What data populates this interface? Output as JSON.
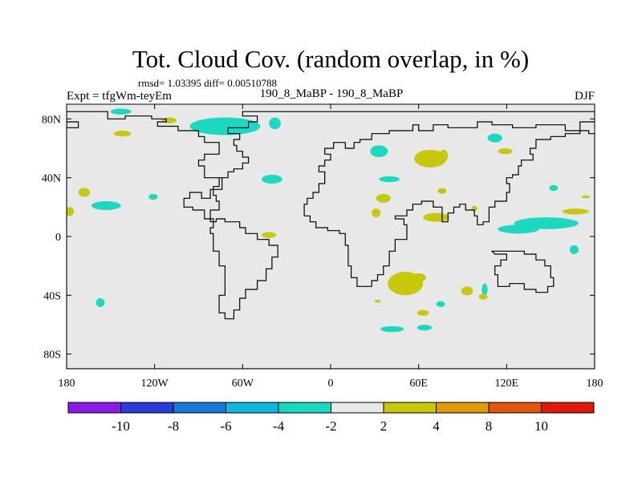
{
  "chart_data": {
    "type": "heatmap",
    "title": "Tot. Cloud Cov. (random overlap, in %)",
    "stats": "rmsd= 1.03395 diff= 0.00510788",
    "left_label": "Expt = tfgWm-teyEm",
    "center_label": "190_8_MaBP - 190_8_MaBP",
    "right_label": "DJF",
    "x_ticks": [
      "180",
      "120W",
      "60W",
      "0",
      "60E",
      "120E",
      "180"
    ],
    "x_values": [
      -180,
      -120,
      -60,
      0,
      60,
      120,
      180
    ],
    "y_ticks": [
      "80N",
      "40N",
      "0",
      "40S",
      "80S"
    ],
    "y_values": [
      80,
      40,
      0,
      -40,
      -80
    ],
    "xlim": [
      -180,
      180
    ],
    "ylim": [
      -90,
      90
    ],
    "colorbar": {
      "labels": [
        "-10",
        "-8",
        "-6",
        "-4",
        "-2",
        "2",
        "4",
        "8",
        "10"
      ],
      "colors": [
        "#8b1ae6",
        "#2b3bd9",
        "#1a78d9",
        "#12b4e0",
        "#1ad9c0",
        "#e8e8e8",
        "#c8c80a",
        "#e09a0a",
        "#e0560a",
        "#e01a0a"
      ]
    },
    "background_color": "#e8e8e8",
    "positive_color": "#c8c80a",
    "negative_color": "#1ad9c0",
    "anomalies": [
      {
        "sign": "neg",
        "lon": -143,
        "lat": 85,
        "dlon": 7,
        "dlat": 2
      },
      {
        "sign": "neg",
        "lon": -72,
        "lat": 75,
        "dlon": 24,
        "dlat": 6
      },
      {
        "sign": "neg",
        "lon": -38,
        "lat": 77,
        "dlon": 4,
        "dlat": 4
      },
      {
        "sign": "neg",
        "lon": 33,
        "lat": 58,
        "dlon": 6,
        "dlat": 4
      },
      {
        "sign": "neg",
        "lon": -153,
        "lat": 21,
        "dlon": 10,
        "dlat": 3
      },
      {
        "sign": "neg",
        "lon": -121,
        "lat": 27,
        "dlon": 3,
        "dlat": 2
      },
      {
        "sign": "neg",
        "lon": -40,
        "lat": 39,
        "dlon": 7,
        "dlat": 3
      },
      {
        "sign": "neg",
        "lon": 40,
        "lat": 39,
        "dlon": 7,
        "dlat": 2
      },
      {
        "sign": "neg",
        "lon": 112,
        "lat": 67,
        "dlon": 5,
        "dlat": 3
      },
      {
        "sign": "neg",
        "lon": 152,
        "lat": 33,
        "dlon": 3,
        "dlat": 2
      },
      {
        "sign": "neg",
        "lon": 147,
        "lat": 9,
        "dlon": 22,
        "dlat": 4
      },
      {
        "sign": "neg",
        "lon": 128,
        "lat": 5,
        "dlon": 14,
        "dlat": 3
      },
      {
        "sign": "neg",
        "lon": 166,
        "lat": -9,
        "dlon": 3,
        "dlat": 3
      },
      {
        "sign": "neg",
        "lon": -157,
        "lat": -45,
        "dlon": 3,
        "dlat": 3
      },
      {
        "sign": "neg",
        "lon": 75,
        "lat": -46,
        "dlon": 3,
        "dlat": 2
      },
      {
        "sign": "neg",
        "lon": 105,
        "lat": -36,
        "dlon": 2,
        "dlat": 4
      },
      {
        "sign": "neg",
        "lon": 42,
        "lat": -63,
        "dlon": 8,
        "dlat": 2
      },
      {
        "sign": "neg",
        "lon": 64,
        "lat": -62,
        "dlon": 5,
        "dlat": 2
      },
      {
        "sign": "pos",
        "lon": -142,
        "lat": 70,
        "dlon": 6,
        "dlat": 2
      },
      {
        "sign": "pos",
        "lon": -110,
        "lat": 79,
        "dlon": 5,
        "dlat": 2
      },
      {
        "sign": "pos",
        "lon": -168,
        "lat": 30,
        "dlon": 4,
        "dlat": 3
      },
      {
        "sign": "pos",
        "lon": -178,
        "lat": 17,
        "dlon": 3,
        "dlat": 3
      },
      {
        "sign": "pos",
        "lon": -42,
        "lat": 1,
        "dlon": 5,
        "dlat": 2
      },
      {
        "sign": "pos",
        "lon": 68,
        "lat": 53,
        "dlon": 11,
        "dlat": 6
      },
      {
        "sign": "pos",
        "lon": 77,
        "lat": 55,
        "dlon": 3,
        "dlat": 4
      },
      {
        "sign": "pos",
        "lon": 119,
        "lat": 58,
        "dlon": 5,
        "dlat": 2
      },
      {
        "sign": "pos",
        "lon": 76,
        "lat": 31,
        "dlon": 3,
        "dlat": 2
      },
      {
        "sign": "pos",
        "lon": 36,
        "lat": 26,
        "dlon": 5,
        "dlat": 3
      },
      {
        "sign": "pos",
        "lon": 31,
        "lat": 16,
        "dlon": 3,
        "dlat": 3
      },
      {
        "sign": "pos",
        "lon": 72,
        "lat": 13,
        "dlon": 9,
        "dlat": 3
      },
      {
        "sign": "pos",
        "lon": 98,
        "lat": 19,
        "dlon": 2,
        "dlat": 2
      },
      {
        "sign": "pos",
        "lon": 167,
        "lat": 17,
        "dlon": 9,
        "dlat": 2
      },
      {
        "sign": "pos",
        "lon": 174,
        "lat": 27,
        "dlon": 3,
        "dlat": 1
      },
      {
        "sign": "pos",
        "lon": 51,
        "lat": -32,
        "dlon": 12,
        "dlat": 8
      },
      {
        "sign": "pos",
        "lon": 60,
        "lat": -28,
        "dlon": 5,
        "dlat": 3
      },
      {
        "sign": "pos",
        "lon": 93,
        "lat": -37,
        "dlon": 4,
        "dlat": 3
      },
      {
        "sign": "pos",
        "lon": 104,
        "lat": -41,
        "dlon": 3,
        "dlat": 2
      },
      {
        "sign": "pos",
        "lon": 63,
        "lat": -52,
        "dlon": 4,
        "dlat": 2
      },
      {
        "sign": "pos",
        "lon": 32,
        "lat": -44,
        "dlon": 2,
        "dlat": 1
      }
    ],
    "continents": [
      [
        [
          -180,
          85
        ],
        [
          -152,
          85
        ],
        [
          -152,
          80
        ],
        [
          -140,
          80
        ],
        [
          -140,
          82
        ],
        [
          -122,
          82
        ],
        [
          -122,
          80
        ],
        [
          -112,
          80
        ],
        [
          -112,
          78
        ],
        [
          -118,
          78
        ],
        [
          -118,
          75
        ],
        [
          -104,
          75
        ],
        [
          -104,
          72
        ],
        [
          -90,
          72
        ],
        [
          -90,
          68
        ],
        [
          -86,
          68
        ],
        [
          -86,
          64
        ],
        [
          -76,
          64
        ],
        [
          -76,
          56
        ],
        [
          -86,
          56
        ],
        [
          -86,
          52
        ],
        [
          -90,
          52
        ],
        [
          -90,
          48
        ],
        [
          -86,
          48
        ],
        [
          -86,
          40
        ],
        [
          -74,
          40
        ],
        [
          -74,
          32
        ],
        [
          -82,
          32
        ],
        [
          -82,
          26
        ],
        [
          -88,
          26
        ],
        [
          -88,
          30
        ],
        [
          -96,
          30
        ],
        [
          -96,
          26
        ],
        [
          -100,
          26
        ],
        [
          -100,
          20
        ],
        [
          -94,
          20
        ],
        [
          -94,
          18
        ],
        [
          -86,
          18
        ],
        [
          -86,
          12
        ],
        [
          -80,
          12
        ],
        [
          -80,
          6
        ],
        [
          -82,
          6
        ],
        [
          -82,
          2
        ],
        [
          -80,
          2
        ],
        [
          -80,
          -10
        ],
        [
          -76,
          -10
        ],
        [
          -76,
          -20
        ],
        [
          -72,
          -20
        ],
        [
          -72,
          -40
        ],
        [
          -76,
          -40
        ],
        [
          -76,
          -52
        ],
        [
          -72,
          -52
        ],
        [
          -72,
          -56
        ],
        [
          -66,
          -56
        ],
        [
          -66,
          -50
        ],
        [
          -62,
          -50
        ],
        [
          -62,
          -42
        ],
        [
          -58,
          -42
        ],
        [
          -58,
          -36
        ],
        [
          -50,
          -36
        ],
        [
          -50,
          -30
        ],
        [
          -44,
          -30
        ],
        [
          -44,
          -22
        ],
        [
          -40,
          -22
        ],
        [
          -40,
          -14
        ],
        [
          -36,
          -14
        ],
        [
          -36,
          -6
        ],
        [
          -42,
          -6
        ],
        [
          -42,
          -2
        ],
        [
          -50,
          -2
        ],
        [
          -50,
          2
        ],
        [
          -58,
          2
        ],
        [
          -58,
          6
        ],
        [
          -62,
          6
        ],
        [
          -62,
          10
        ],
        [
          -72,
          10
        ],
        [
          -72,
          12
        ],
        [
          -78,
          12
        ],
        [
          -78,
          10
        ],
        [
          -82,
          10
        ],
        [
          -82,
          18
        ],
        [
          -76,
          18
        ],
        [
          -76,
          24
        ],
        [
          -78,
          24
        ],
        [
          -78,
          28
        ],
        [
          -80,
          28
        ],
        [
          -80,
          34
        ],
        [
          -76,
          34
        ],
        [
          -76,
          40
        ],
        [
          -70,
          40
        ],
        [
          -70,
          44
        ],
        [
          -66,
          44
        ],
        [
          -66,
          46
        ],
        [
          -60,
          46
        ],
        [
          -60,
          50
        ],
        [
          -56,
          50
        ],
        [
          -56,
          54
        ],
        [
          -60,
          54
        ],
        [
          -60,
          58
        ],
        [
          -64,
          58
        ],
        [
          -64,
          62
        ],
        [
          -66,
          62
        ],
        [
          -66,
          66
        ],
        [
          -62,
          66
        ],
        [
          -62,
          70
        ],
        [
          -70,
          70
        ],
        [
          -70,
          74
        ],
        [
          -56,
          74
        ],
        [
          -56,
          78
        ],
        [
          -50,
          78
        ],
        [
          -50,
          82
        ],
        [
          -60,
          82
        ],
        [
          -60,
          85
        ],
        [
          180,
          85
        ],
        [
          180,
          78
        ],
        [
          170,
          78
        ],
        [
          170,
          70
        ],
        [
          160,
          70
        ],
        [
          160,
          68
        ],
        [
          150,
          68
        ],
        [
          150,
          66
        ],
        [
          140,
          66
        ],
        [
          140,
          60
        ],
        [
          136,
          60
        ],
        [
          136,
          56
        ],
        [
          138,
          56
        ],
        [
          138,
          52
        ],
        [
          130,
          52
        ],
        [
          130,
          48
        ],
        [
          128,
          48
        ],
        [
          128,
          42
        ],
        [
          124,
          42
        ],
        [
          124,
          40
        ],
        [
          120,
          40
        ],
        [
          120,
          36
        ],
        [
          122,
          36
        ],
        [
          122,
          30
        ],
        [
          120,
          30
        ],
        [
          120,
          24
        ],
        [
          112,
          24
        ],
        [
          112,
          20
        ],
        [
          108,
          20
        ],
        [
          108,
          10
        ],
        [
          104,
          10
        ],
        [
          104,
          8
        ],
        [
          100,
          8
        ],
        [
          100,
          14
        ],
        [
          98,
          14
        ],
        [
          98,
          18
        ],
        [
          92,
          18
        ],
        [
          92,
          22
        ],
        [
          88,
          22
        ],
        [
          88,
          20
        ],
        [
          84,
          20
        ],
        [
          84,
          16
        ],
        [
          80,
          16
        ],
        [
          80,
          10
        ],
        [
          76,
          10
        ],
        [
          76,
          20
        ],
        [
          70,
          20
        ],
        [
          70,
          24
        ],
        [
          62,
          24
        ],
        [
          62,
          22
        ],
        [
          56,
          22
        ],
        [
          56,
          18
        ],
        [
          52,
          18
        ],
        [
          52,
          14
        ],
        [
          44,
          14
        ],
        [
          44,
          12
        ],
        [
          50,
          12
        ],
        [
          50,
          8
        ],
        [
          52,
          8
        ],
        [
          52,
          -2
        ],
        [
          44,
          -2
        ],
        [
          44,
          -10
        ],
        [
          40,
          -10
        ],
        [
          40,
          -20
        ],
        [
          36,
          -20
        ],
        [
          36,
          -26
        ],
        [
          32,
          -26
        ],
        [
          32,
          -30
        ],
        [
          28,
          -30
        ],
        [
          28,
          -34
        ],
        [
          18,
          -34
        ],
        [
          18,
          -28
        ],
        [
          14,
          -28
        ],
        [
          14,
          -20
        ],
        [
          12,
          -20
        ],
        [
          12,
          -6
        ],
        [
          10,
          -6
        ],
        [
          10,
          2
        ],
        [
          6,
          2
        ],
        [
          6,
          4
        ],
        [
          -2,
          4
        ],
        [
          -2,
          6
        ],
        [
          -10,
          6
        ],
        [
          -10,
          10
        ],
        [
          -14,
          10
        ],
        [
          -14,
          14
        ],
        [
          -18,
          14
        ],
        [
          -18,
          22
        ],
        [
          -16,
          22
        ],
        [
          -16,
          26
        ],
        [
          -12,
          26
        ],
        [
          -12,
          30
        ],
        [
          -8,
          30
        ],
        [
          -8,
          36
        ],
        [
          -4,
          36
        ],
        [
          -4,
          44
        ],
        [
          -8,
          44
        ],
        [
          -8,
          48
        ],
        [
          -4,
          48
        ],
        [
          -4,
          52
        ],
        [
          0,
          52
        ],
        [
          0,
          56
        ],
        [
          -4,
          56
        ],
        [
          -4,
          60
        ],
        [
          2,
          60
        ],
        [
          2,
          64
        ],
        [
          10,
          64
        ],
        [
          10,
          60
        ],
        [
          16,
          60
        ],
        [
          16,
          64
        ],
        [
          20,
          64
        ],
        [
          20,
          66
        ],
        [
          28,
          66
        ],
        [
          28,
          70
        ],
        [
          40,
          70
        ],
        [
          40,
          72
        ],
        [
          56,
          72
        ],
        [
          56,
          76
        ],
        [
          60,
          76
        ],
        [
          60,
          72
        ],
        [
          70,
          72
        ],
        [
          70,
          76
        ],
        [
          80,
          76
        ],
        [
          80,
          74
        ],
        [
          100,
          74
        ],
        [
          100,
          78
        ],
        [
          110,
          78
        ],
        [
          110,
          76
        ],
        [
          124,
          76
        ],
        [
          124,
          74
        ],
        [
          140,
          74
        ],
        [
          140,
          76
        ],
        [
          160,
          76
        ],
        [
          160,
          72
        ],
        [
          176,
          72
        ],
        [
          176,
          70
        ],
        [
          180,
          70
        ],
        [
          180,
          -90
        ],
        [
          -180,
          -90
        ]
      ],
      [
        [
          -180,
          78
        ],
        [
          -172,
          78
        ],
        [
          -172,
          74
        ],
        [
          -180,
          74
        ]
      ],
      [
        [
          110,
          -10
        ],
        [
          132,
          -10
        ],
        [
          132,
          -12
        ],
        [
          140,
          -12
        ],
        [
          140,
          -16
        ],
        [
          146,
          -16
        ],
        [
          146,
          -20
        ],
        [
          150,
          -20
        ],
        [
          150,
          -28
        ],
        [
          152,
          -28
        ],
        [
          152,
          -34
        ],
        [
          148,
          -34
        ],
        [
          148,
          -38
        ],
        [
          140,
          -38
        ],
        [
          140,
          -36
        ],
        [
          132,
          -36
        ],
        [
          132,
          -32
        ],
        [
          122,
          -32
        ],
        [
          122,
          -34
        ],
        [
          114,
          -34
        ],
        [
          114,
          -26
        ],
        [
          112,
          -26
        ],
        [
          112,
          -20
        ],
        [
          116,
          -20
        ],
        [
          116,
          -16
        ],
        [
          120,
          -16
        ],
        [
          120,
          -12
        ],
        [
          112,
          -12
        ]
      ]
    ]
  }
}
